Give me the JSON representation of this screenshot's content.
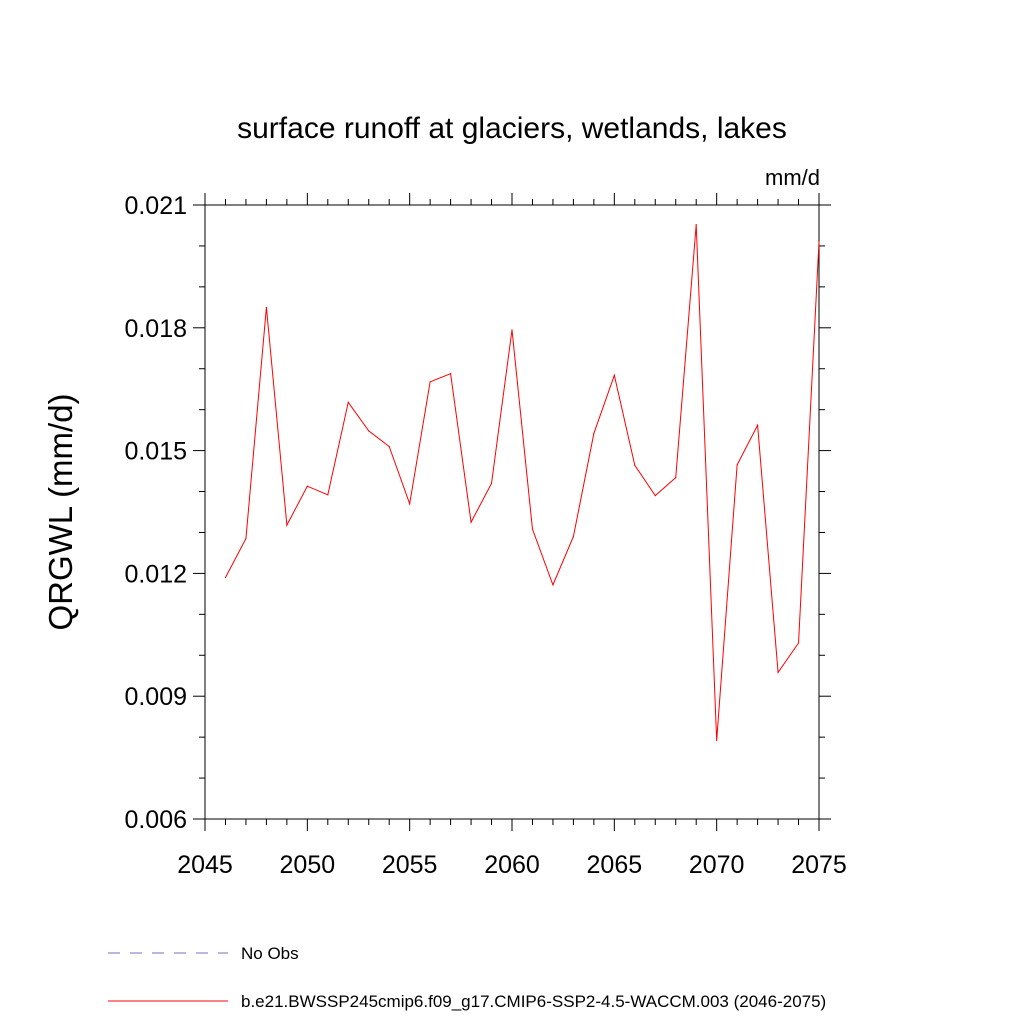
{
  "chart_data": {
    "type": "line",
    "title": "surface runoff at glaciers, wetlands, lakes",
    "units": "mm/d",
    "ylabel": "QRGWL  (mm/d)",
    "xlabel": "",
    "xlim": [
      2045,
      2075
    ],
    "ylim": [
      0.006,
      0.021
    ],
    "x_ticks": [
      "2045",
      "2050",
      "2055",
      "2060",
      "2065",
      "2070",
      "2075"
    ],
    "y_ticks": [
      "0.006",
      "0.009",
      "0.012",
      "0.015",
      "0.018",
      "0.021"
    ],
    "x": [
      2046,
      2047,
      2048,
      2049,
      2050,
      2051,
      2052,
      2053,
      2054,
      2055,
      2056,
      2057,
      2058,
      2059,
      2060,
      2061,
      2062,
      2063,
      2064,
      2065,
      2066,
      2067,
      2068,
      2069,
      2070,
      2071,
      2072,
      2073,
      2074,
      2075
    ],
    "series": [
      {
        "name": "b.e21.BWSSP245cmip6.f09_g17.CMIP6-SSP2-4.5-WACCM.003 (2046-2075)",
        "color": "#ff0000",
        "values": [
          0.0119,
          0.01285,
          0.0185,
          0.01318,
          0.01413,
          0.01392,
          0.01618,
          0.01548,
          0.0151,
          0.0137,
          0.01668,
          0.01688,
          0.01325,
          0.0142,
          0.01795,
          0.01308,
          0.01172,
          0.0129,
          0.01542,
          0.01684,
          0.01464,
          0.0139,
          0.01434,
          0.02052,
          0.00792,
          0.01465,
          0.01562,
          0.00958,
          0.0103,
          0.0201
        ]
      }
    ],
    "legend": {
      "placement": "bottom",
      "entries": [
        {
          "label": "No Obs",
          "color": "#7b6fc4",
          "style": "dashed"
        },
        {
          "label": "b.e21.BWSSP245cmip6.f09_g17.CMIP6-SSP2-4.5-WACCM.003 (2046-2075)",
          "color": "#ff0000",
          "style": "solid"
        }
      ]
    }
  }
}
